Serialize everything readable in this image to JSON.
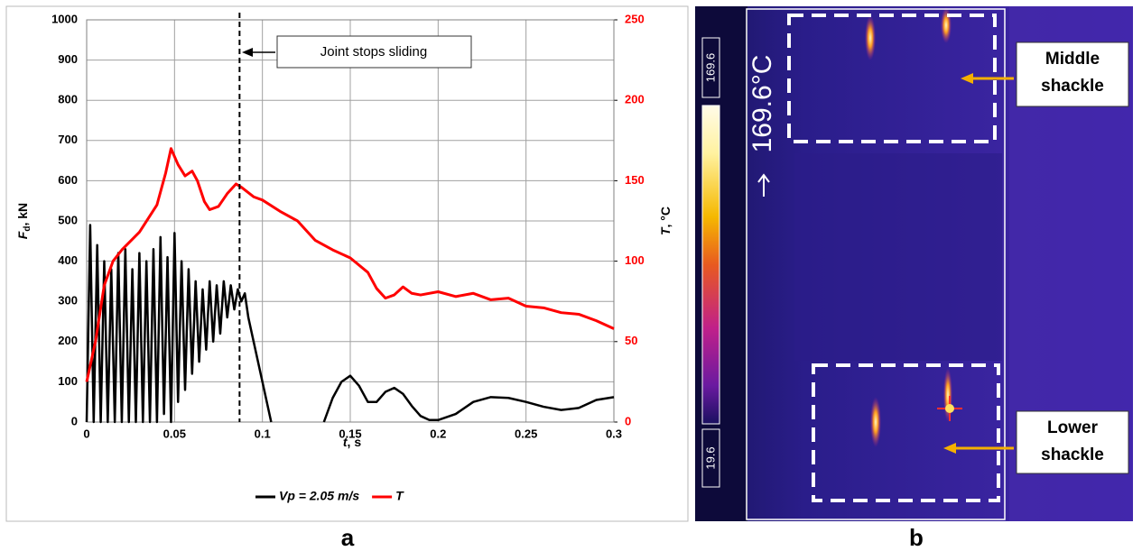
{
  "chart_data": {
    "type": "line",
    "xlim": [
      0,
      0.3
    ],
    "xticks": [
      0,
      0.05,
      0.1,
      0.15,
      0.2,
      0.25,
      0.3
    ],
    "ylim": [
      0,
      1000
    ],
    "yticks": [
      0,
      100,
      200,
      300,
      400,
      500,
      600,
      700,
      800,
      900,
      1000
    ],
    "y2lim": [
      0,
      250
    ],
    "y2ticks": [
      0,
      50,
      100,
      150,
      200,
      250
    ],
    "grid": true,
    "x_label": {
      "symbol": "t",
      "unit": ", s"
    },
    "y_label": {
      "symbol": "F",
      "subscript": "d",
      "unit": ", kN"
    },
    "y2_label": {
      "symbol": "T",
      "unit": ", °C"
    },
    "annotation": {
      "text": "Joint stops sliding",
      "x": 0.087
    },
    "legend": "bottom",
    "series": [
      {
        "name": "Vp = 2.05 m/s",
        "color": "#000000",
        "x": [
          0,
          0.002,
          0.004,
          0.006,
          0.008,
          0.01,
          0.012,
          0.014,
          0.016,
          0.018,
          0.02,
          0.022,
          0.024,
          0.026,
          0.028,
          0.03,
          0.032,
          0.034,
          0.036,
          0.038,
          0.04,
          0.042,
          0.044,
          0.046,
          0.048,
          0.05,
          0.052,
          0.054,
          0.056,
          0.058,
          0.06,
          0.062,
          0.064,
          0.066,
          0.068,
          0.07,
          0.072,
          0.074,
          0.076,
          0.078,
          0.08,
          0.082,
          0.084,
          0.086,
          0.088,
          0.09,
          0.092,
          0.095,
          0.1,
          0.105,
          0.12,
          0.135,
          0.14,
          0.145,
          0.15,
          0.155,
          0.16,
          0.165,
          0.17,
          0.175,
          0.18,
          0.185,
          0.19,
          0.195,
          0.2,
          0.21,
          0.22,
          0.23,
          0.24,
          0.25,
          0.26,
          0.27,
          0.28,
          0.29,
          0.3
        ],
        "values": [
          0,
          490,
          0,
          440,
          0,
          400,
          0,
          380,
          0,
          420,
          0,
          430,
          0,
          380,
          0,
          420,
          0,
          400,
          0,
          430,
          0,
          460,
          20,
          410,
          0,
          470,
          50,
          400,
          80,
          380,
          120,
          350,
          150,
          330,
          180,
          350,
          200,
          340,
          220,
          350,
          260,
          340,
          280,
          330,
          300,
          320,
          260,
          200,
          100,
          0,
          null,
          0,
          60,
          100,
          115,
          90,
          50,
          50,
          75,
          85,
          70,
          40,
          15,
          5,
          5,
          20,
          50,
          62,
          60,
          50,
          38,
          30,
          35,
          55,
          62
        ]
      },
      {
        "name": "T",
        "color": "#ff0000",
        "axis": "y2",
        "x": [
          0,
          0.005,
          0.01,
          0.015,
          0.02,
          0.03,
          0.04,
          0.045,
          0.048,
          0.052,
          0.056,
          0.06,
          0.063,
          0.067,
          0.07,
          0.075,
          0.08,
          0.085,
          0.088,
          0.095,
          0.1,
          0.11,
          0.12,
          0.13,
          0.14,
          0.15,
          0.16,
          0.165,
          0.17,
          0.175,
          0.18,
          0.185,
          0.19,
          0.2,
          0.21,
          0.22,
          0.23,
          0.24,
          0.25,
          0.26,
          0.27,
          0.28,
          0.29,
          0.3
        ],
        "values": [
          25,
          50,
          85,
          100,
          107,
          118,
          135,
          155,
          170,
          160,
          153,
          156,
          150,
          137,
          132,
          134,
          142,
          148,
          146,
          140,
          138,
          131,
          125,
          113,
          107,
          102,
          93,
          83,
          77,
          79,
          84,
          80,
          79,
          81,
          78,
          80,
          76,
          77,
          72,
          71,
          68,
          67,
          63,
          58
        ]
      }
    ]
  },
  "panel_labels": [
    "a",
    "b"
  ],
  "thermal_image": {
    "scale_max": "169.6",
    "scale_min": "19.6",
    "max_readout": "169.6°C",
    "callouts": [
      {
        "lines": [
          "Middle",
          "shackle"
        ]
      },
      {
        "lines": [
          "Lower",
          "shackle"
        ]
      }
    ]
  }
}
